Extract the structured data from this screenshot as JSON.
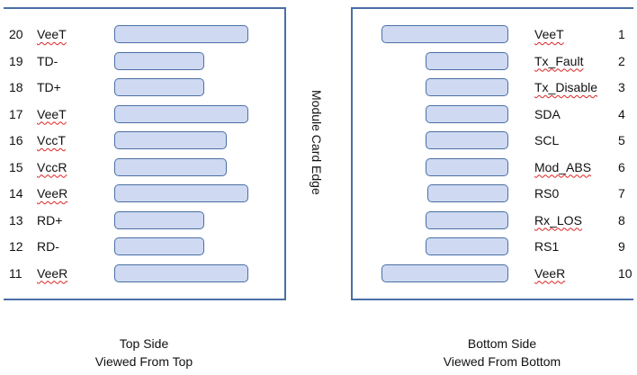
{
  "colors": {
    "pad_fill": "#cfdaf2",
    "pad_border": "#4a6fa5",
    "frame": "#4a6fa5",
    "spellcheck": "#dd2222"
  },
  "edge_label": "Module Card Edge",
  "top_side": {
    "caption_line1": "Top Side",
    "caption_line2": "Viewed From Top",
    "pins": [
      {
        "num": "20",
        "name": "VeeT",
        "spell": true,
        "pad": "long"
      },
      {
        "num": "19",
        "name": "TD-",
        "spell": false,
        "pad": "short"
      },
      {
        "num": "18",
        "name": "TD+",
        "spell": false,
        "pad": "short"
      },
      {
        "num": "17",
        "name": "VeeT",
        "spell": true,
        "pad": "long"
      },
      {
        "num": "16",
        "name": "VccT",
        "spell": true,
        "pad": "medium"
      },
      {
        "num": "15",
        "name": "VccR",
        "spell": true,
        "pad": "medium"
      },
      {
        "num": "14",
        "name": "VeeR",
        "spell": true,
        "pad": "long"
      },
      {
        "num": "13",
        "name": "RD+",
        "spell": false,
        "pad": "short"
      },
      {
        "num": "12",
        "name": "RD-",
        "spell": false,
        "pad": "short"
      },
      {
        "num": "11",
        "name": "VeeR",
        "spell": true,
        "pad": "long"
      }
    ]
  },
  "bottom_side": {
    "caption_line1": "Bottom Side",
    "caption_line2": "Viewed From Bottom",
    "pins": [
      {
        "num": "1",
        "name": "VeeT",
        "spell": true,
        "pad": "long"
      },
      {
        "num": "2",
        "name": "Tx_Fault",
        "spell": true,
        "pad": "short"
      },
      {
        "num": "3",
        "name": "Tx_Disable",
        "spell": true,
        "pad": "short"
      },
      {
        "num": "4",
        "name": "SDA",
        "spell": false,
        "pad": "short"
      },
      {
        "num": "5",
        "name": "SCL",
        "spell": false,
        "pad": "short"
      },
      {
        "num": "6",
        "name": "Mod_ABS",
        "spell": true,
        "pad": "short"
      },
      {
        "num": "7",
        "name": "RS0",
        "spell": false,
        "pad": "shorter"
      },
      {
        "num": "8",
        "name": "Rx_LOS",
        "spell": true,
        "pad": "short"
      },
      {
        "num": "9",
        "name": "RS1",
        "spell": false,
        "pad": "short"
      },
      {
        "num": "10",
        "name": "VeeR",
        "spell": true,
        "pad": "long"
      }
    ]
  }
}
